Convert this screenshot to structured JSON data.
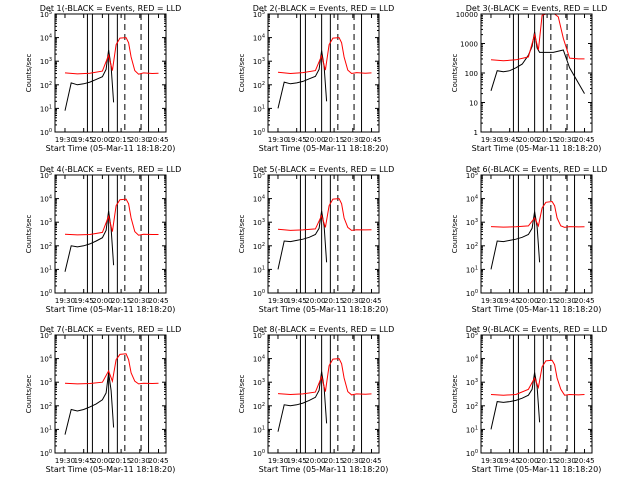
{
  "colors": {
    "events": "#000000",
    "lld": "#ff0000",
    "axis": "#000000",
    "background": "#ffffff"
  },
  "chart_data": [
    {
      "type": "line",
      "title": "Det 1(-BLACK = Events, RED = LLD",
      "ylabel": "Counts/sec",
      "xlabel": "Start Time (05-Mar-11 18:18:20)",
      "y_scale": "log",
      "ylim": [
        1,
        100000
      ],
      "y_ticks": [
        1,
        10,
        100,
        1000,
        10000,
        100000
      ],
      "y_tick_labels": [
        "10^0",
        "10^1",
        "10^2",
        "10^3",
        "10^4",
        "10^5"
      ],
      "x_ticks": [
        "19:30",
        "19:45",
        "20:00",
        "20:15",
        "20:30",
        "20:45"
      ],
      "vlines_solid": [
        "19:48",
        "19:52",
        "20:05",
        "20:12",
        "20:37"
      ],
      "vlines_dashed": [
        "20:18",
        "20:31"
      ],
      "series": [
        {
          "name": "Events",
          "x": [
            "19:30",
            "19:35",
            "19:40",
            "19:45",
            "19:50",
            "19:55",
            "20:00",
            "20:03",
            "20:05",
            "20:07",
            "20:09"
          ],
          "y": [
            8,
            120,
            100,
            110,
            130,
            170,
            220,
            450,
            3000,
            600,
            18
          ]
        },
        {
          "name": "LLD",
          "x": [
            "19:30",
            "19:40",
            "19:50",
            "20:00",
            "20:05",
            "20:08",
            "20:11",
            "20:14",
            "20:19",
            "20:21",
            "20:23",
            "20:26",
            "20:29",
            "20:33",
            "20:40",
            "20:45"
          ],
          "y": [
            320,
            290,
            310,
            380,
            1800,
            400,
            5000,
            9500,
            10000,
            6000,
            1500,
            400,
            280,
            320,
            300,
            310
          ]
        }
      ]
    },
    {
      "type": "line",
      "title": "Det 2(-BLACK = Events, RED = LLD",
      "ylabel": "Counts/sec",
      "xlabel": "Start Time (05-Mar-11 18:18:20)",
      "y_scale": "log",
      "ylim": [
        1,
        100000
      ],
      "y_ticks": [
        1,
        10,
        100,
        1000,
        10000,
        100000
      ],
      "y_tick_labels": [
        "10^0",
        "10^1",
        "10^2",
        "10^3",
        "10^4",
        "10^5"
      ],
      "x_ticks": [
        "19:30",
        "19:45",
        "20:00",
        "20:15",
        "20:30",
        "20:45"
      ],
      "vlines_solid": [
        "19:48",
        "19:52",
        "20:05",
        "20:12",
        "20:37"
      ],
      "vlines_dashed": [
        "20:18",
        "20:31"
      ],
      "series": [
        {
          "name": "Events",
          "x": [
            "19:30",
            "19:35",
            "19:40",
            "19:45",
            "19:50",
            "19:55",
            "20:00",
            "20:03",
            "20:05",
            "20:07",
            "20:09"
          ],
          "y": [
            10,
            130,
            110,
            120,
            140,
            180,
            230,
            450,
            2800,
            600,
            20
          ]
        },
        {
          "name": "LLD",
          "x": [
            "19:30",
            "19:40",
            "19:50",
            "20:00",
            "20:05",
            "20:08",
            "20:11",
            "20:14",
            "20:19",
            "20:21",
            "20:23",
            "20:26",
            "20:29",
            "20:33",
            "20:40",
            "20:45"
          ],
          "y": [
            340,
            300,
            330,
            400,
            1700,
            420,
            5000,
            9500,
            10000,
            6000,
            1500,
            420,
            300,
            330,
            310,
            320
          ]
        }
      ]
    },
    {
      "type": "line",
      "title": "Det 3(-BLACK = Events, RED = LLD",
      "ylabel": "Counts/sec",
      "xlabel": "Start Time (05-Mar-11 18:18:20)",
      "y_scale": "log",
      "ylim": [
        1,
        10000
      ],
      "y_ticks": [
        1,
        10,
        100,
        1000,
        10000
      ],
      "y_tick_labels": [
        "1",
        "10",
        "100",
        "1000",
        "10000"
      ],
      "x_ticks": [
        "19:30",
        "19:45",
        "20:00",
        "20:15",
        "20:30",
        "20:45"
      ],
      "vlines_solid": [
        "19:48",
        "19:52",
        "20:05",
        "20:12",
        "20:37"
      ],
      "vlines_dashed": [
        "20:18",
        "20:31"
      ],
      "series": [
        {
          "name": "Events",
          "x": [
            "19:30",
            "19:35",
            "19:40",
            "19:45",
            "19:50",
            "19:55",
            "20:00",
            "20:03",
            "20:05",
            "20:07",
            "20:09",
            "20:13",
            "20:20",
            "20:28",
            "20:33",
            "20:45"
          ],
          "y": [
            25,
            120,
            110,
            120,
            150,
            200,
            400,
            800,
            2500,
            700,
            500,
            500,
            500,
            600,
            150,
            20
          ]
        },
        {
          "name": "LLD",
          "x": [
            "19:30",
            "19:40",
            "19:50",
            "20:00",
            "20:05",
            "20:08",
            "20:11",
            "20:14",
            "20:19",
            "20:21",
            "20:24",
            "20:28",
            "20:33",
            "20:40",
            "20:45"
          ],
          "y": [
            280,
            260,
            280,
            350,
            2000,
            600,
            9000,
            10000,
            10000,
            10000,
            8000,
            1500,
            320,
            300,
            300
          ]
        }
      ]
    },
    {
      "type": "line",
      "title": "Det 4(-BLACK = Events, RED = LLD",
      "ylabel": "Counts/sec",
      "xlabel": "Start Time (05-Mar-11 18:18:20)",
      "y_scale": "log",
      "ylim": [
        1,
        100000
      ],
      "y_ticks": [
        1,
        10,
        100,
        1000,
        10000,
        100000
      ],
      "y_tick_labels": [
        "10^0",
        "10^1",
        "10^2",
        "10^3",
        "10^4",
        "10^5"
      ],
      "x_ticks": [
        "19:30",
        "19:45",
        "20:00",
        "20:15",
        "20:30",
        "20:45"
      ],
      "vlines_solid": [
        "19:48",
        "19:52",
        "20:05",
        "20:12",
        "20:37"
      ],
      "vlines_dashed": [
        "20:18",
        "20:31"
      ],
      "series": [
        {
          "name": "Events",
          "x": [
            "19:30",
            "19:35",
            "19:40",
            "19:45",
            "19:50",
            "19:55",
            "20:00",
            "20:03",
            "20:05",
            "20:07",
            "20:09"
          ],
          "y": [
            8,
            100,
            90,
            100,
            120,
            160,
            220,
            450,
            3000,
            550,
            15
          ]
        },
        {
          "name": "LLD",
          "x": [
            "19:30",
            "19:40",
            "19:50",
            "20:00",
            "20:05",
            "20:08",
            "20:11",
            "20:14",
            "20:19",
            "20:21",
            "20:23",
            "20:26",
            "20:29",
            "20:33",
            "20:40",
            "20:45"
          ],
          "y": [
            310,
            290,
            300,
            370,
            1800,
            400,
            5000,
            9000,
            9500,
            6000,
            1500,
            400,
            280,
            310,
            300,
            300
          ]
        }
      ]
    },
    {
      "type": "line",
      "title": "Det 5(-BLACK = Events, RED = LLD",
      "ylabel": "Counts/sec",
      "xlabel": "Start Time (05-Mar-11 18:18:20)",
      "y_scale": "log",
      "ylim": [
        1,
        100000
      ],
      "y_ticks": [
        1,
        10,
        100,
        1000,
        10000,
        100000
      ],
      "y_tick_labels": [
        "10^0",
        "10^1",
        "10^2",
        "10^3",
        "10^4",
        "10^5"
      ],
      "x_ticks": [
        "19:30",
        "19:45",
        "20:00",
        "20:15",
        "20:30",
        "20:45"
      ],
      "vlines_solid": [
        "19:48",
        "19:52",
        "20:05",
        "20:12",
        "20:37"
      ],
      "vlines_dashed": [
        "20:18",
        "20:31"
      ],
      "series": [
        {
          "name": "Events",
          "x": [
            "19:30",
            "19:35",
            "19:40",
            "19:45",
            "19:50",
            "19:55",
            "20:00",
            "20:03",
            "20:05",
            "20:07",
            "20:09"
          ],
          "y": [
            10,
            160,
            150,
            170,
            190,
            230,
            300,
            550,
            3000,
            700,
            20
          ]
        },
        {
          "name": "LLD",
          "x": [
            "19:30",
            "19:40",
            "19:50",
            "20:00",
            "20:05",
            "20:08",
            "20:11",
            "20:14",
            "20:19",
            "20:21",
            "20:23",
            "20:26",
            "20:29",
            "20:33",
            "20:40",
            "20:45"
          ],
          "y": [
            500,
            450,
            470,
            520,
            1900,
            600,
            5000,
            9500,
            10000,
            6000,
            1500,
            600,
            450,
            480,
            470,
            480
          ]
        }
      ]
    },
    {
      "type": "line",
      "title": "Det 6(-BLACK = Events, RED = LLD",
      "ylabel": "Counts/sec",
      "xlabel": "Start Time (05-Mar-11 18:18:20)",
      "y_scale": "log",
      "ylim": [
        1,
        100000
      ],
      "y_ticks": [
        1,
        10,
        100,
        1000,
        10000,
        100000
      ],
      "y_tick_labels": [
        "10^0",
        "10^1",
        "10^2",
        "10^3",
        "10^4",
        "10^5"
      ],
      "x_ticks": [
        "19:30",
        "19:45",
        "20:00",
        "20:15",
        "20:30",
        "20:45"
      ],
      "vlines_solid": [
        "19:48",
        "19:52",
        "20:05",
        "20:12",
        "20:37"
      ],
      "vlines_dashed": [
        "20:18",
        "20:31"
      ],
      "series": [
        {
          "name": "Events",
          "x": [
            "19:30",
            "19:35",
            "19:40",
            "19:45",
            "19:50",
            "19:55",
            "20:00",
            "20:03",
            "20:05",
            "20:07",
            "20:09"
          ],
          "y": [
            10,
            160,
            150,
            170,
            190,
            230,
            300,
            550,
            2800,
            650,
            20
          ]
        },
        {
          "name": "LLD",
          "x": [
            "19:30",
            "19:40",
            "19:50",
            "20:00",
            "20:05",
            "20:08",
            "20:11",
            "20:14",
            "20:19",
            "20:21",
            "20:23",
            "20:26",
            "20:29",
            "20:33",
            "20:40",
            "20:45"
          ],
          "y": [
            650,
            620,
            640,
            700,
            1500,
            700,
            4000,
            7000,
            7500,
            5000,
            1500,
            700,
            600,
            650,
            630,
            640
          ]
        }
      ]
    },
    {
      "type": "line",
      "title": "Det 7(-BLACK = Events, RED = LLD",
      "ylabel": "Counts/sec",
      "xlabel": "Start Time (05-Mar-11 18:18:20)",
      "y_scale": "log",
      "ylim": [
        1,
        100000
      ],
      "y_ticks": [
        1,
        10,
        100,
        1000,
        10000,
        100000
      ],
      "y_tick_labels": [
        "10^0",
        "10^1",
        "10^2",
        "10^3",
        "10^4",
        "10^5"
      ],
      "x_ticks": [
        "19:30",
        "19:45",
        "20:00",
        "20:15",
        "20:30",
        "20:45"
      ],
      "vlines_solid": [
        "19:48",
        "19:52",
        "20:05",
        "20:12",
        "20:37"
      ],
      "vlines_dashed": [
        "20:18",
        "20:31"
      ],
      "series": [
        {
          "name": "Events",
          "x": [
            "19:30",
            "19:35",
            "19:40",
            "19:45",
            "19:50",
            "19:55",
            "20:00",
            "20:03",
            "20:05",
            "20:07",
            "20:09"
          ],
          "y": [
            6,
            70,
            60,
            70,
            90,
            120,
            180,
            350,
            2500,
            450,
            12
          ]
        },
        {
          "name": "LLD",
          "x": [
            "19:30",
            "19:40",
            "19:50",
            "20:00",
            "20:05",
            "20:08",
            "20:11",
            "20:14",
            "20:19",
            "20:21",
            "20:23",
            "20:26",
            "20:29",
            "20:33",
            "20:40",
            "20:45"
          ],
          "y": [
            900,
            850,
            880,
            1000,
            3000,
            1100,
            9000,
            15000,
            16000,
            9000,
            2500,
            1100,
            850,
            900,
            880,
            900
          ]
        }
      ]
    },
    {
      "type": "line",
      "title": "Det 8(-BLACK = Events, RED = LLD",
      "ylabel": "Counts/sec",
      "xlabel": "Start Time (05-Mar-11 18:18:20)",
      "y_scale": "log",
      "ylim": [
        1,
        100000
      ],
      "y_ticks": [
        1,
        10,
        100,
        1000,
        10000,
        100000
      ],
      "y_tick_labels": [
        "10^0",
        "10^1",
        "10^2",
        "10^3",
        "10^4",
        "10^5"
      ],
      "x_ticks": [
        "19:30",
        "19:45",
        "20:00",
        "20:15",
        "20:30",
        "20:45"
      ],
      "vlines_solid": [
        "19:48",
        "19:52",
        "20:05",
        "20:12",
        "20:37"
      ],
      "vlines_dashed": [
        "20:18",
        "20:31"
      ],
      "series": [
        {
          "name": "Events",
          "x": [
            "19:30",
            "19:35",
            "19:40",
            "19:45",
            "19:50",
            "19:55",
            "20:00",
            "20:03",
            "20:05",
            "20:07",
            "20:09"
          ],
          "y": [
            8,
            110,
            100,
            110,
            130,
            170,
            230,
            450,
            2800,
            600,
            18
          ]
        },
        {
          "name": "LLD",
          "x": [
            "19:30",
            "19:40",
            "19:50",
            "20:00",
            "20:05",
            "20:08",
            "20:11",
            "20:14",
            "20:19",
            "20:21",
            "20:23",
            "20:26",
            "20:29",
            "20:33",
            "20:40",
            "20:45"
          ],
          "y": [
            330,
            300,
            320,
            380,
            1700,
            400,
            5000,
            9500,
            10000,
            6000,
            1500,
            400,
            290,
            320,
            310,
            320
          ]
        }
      ]
    },
    {
      "type": "line",
      "title": "Det 9(-BLACK = Events, RED = LLD",
      "ylabel": "Counts/sec",
      "xlabel": "Start Time (05-Mar-11 18:18:20)",
      "y_scale": "log",
      "ylim": [
        1,
        100000
      ],
      "y_ticks": [
        1,
        10,
        100,
        1000,
        10000,
        100000
      ],
      "y_tick_labels": [
        "10^0",
        "10^1",
        "10^2",
        "10^3",
        "10^4",
        "10^5"
      ],
      "x_ticks": [
        "19:30",
        "19:45",
        "20:00",
        "20:15",
        "20:30",
        "20:45"
      ],
      "vlines_solid": [
        "19:48",
        "19:52",
        "20:05",
        "20:12",
        "20:37"
      ],
      "vlines_dashed": [
        "20:18",
        "20:31"
      ],
      "series": [
        {
          "name": "Events",
          "x": [
            "19:30",
            "19:35",
            "19:40",
            "19:45",
            "19:50",
            "19:55",
            "20:00",
            "20:03",
            "20:05",
            "20:07",
            "20:09"
          ],
          "y": [
            10,
            150,
            140,
            150,
            170,
            210,
            280,
            500,
            2600,
            650,
            20
          ]
        },
        {
          "name": "LLD",
          "x": [
            "19:30",
            "19:40",
            "19:50",
            "20:00",
            "20:05",
            "20:08",
            "20:11",
            "20:14",
            "20:19",
            "20:21",
            "20:23",
            "20:26",
            "20:29",
            "20:33",
            "20:40",
            "20:45"
          ],
          "y": [
            300,
            280,
            300,
            500,
            1500,
            600,
            4500,
            8000,
            8500,
            5500,
            1500,
            500,
            280,
            300,
            290,
            300
          ]
        }
      ]
    }
  ]
}
